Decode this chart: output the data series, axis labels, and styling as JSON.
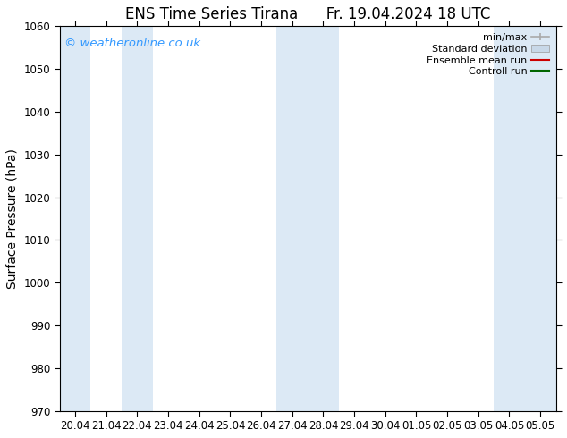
{
  "title": "ENS Time Series Tirana",
  "date_str": "Fr. 19.04.2024 18 UTC",
  "ylabel": "Surface Pressure (hPa)",
  "watermark": "© weatheronline.co.uk",
  "watermark_color": "#3399ff",
  "ylim": [
    970,
    1060
  ],
  "ytick_major": 10,
  "background_color": "#ffffff",
  "plot_bg_color": "#ffffff",
  "shaded_band_color": "#dce9f5",
  "x_labels": [
    "20.04",
    "21.04",
    "22.04",
    "23.04",
    "24.04",
    "25.04",
    "26.04",
    "27.04",
    "28.04",
    "29.04",
    "30.04",
    "01.05",
    "02.05",
    "03.05",
    "04.05",
    "05.05"
  ],
  "shaded_indices": [
    0,
    2,
    7,
    8,
    14,
    15
  ],
  "legend_entries": [
    {
      "label": "min/max",
      "color": "#aaaaaa",
      "type": "errorbar"
    },
    {
      "label": "Standard deviation",
      "color": "#cccccc",
      "type": "band"
    },
    {
      "label": "Ensemble mean run",
      "color": "#ff0000",
      "type": "line"
    },
    {
      "label": "Controll run",
      "color": "#009900",
      "type": "line"
    }
  ],
  "title_fontsize": 12,
  "axis_label_fontsize": 10,
  "tick_fontsize": 8.5,
  "watermark_fontsize": 9.5
}
